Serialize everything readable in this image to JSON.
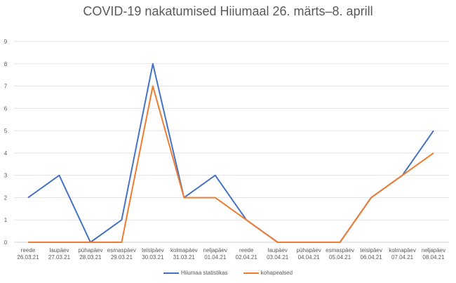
{
  "chart_data": {
    "type": "line",
    "title": "COVID-19 nakatumised Hiiumaal 26. märts–8. aprill",
    "categories": [
      [
        "reede",
        "26.03.21"
      ],
      [
        "laupäev",
        "27.03.21"
      ],
      [
        "pühapäev",
        "28.03.21"
      ],
      [
        "esmaspäev",
        "29.03.21"
      ],
      [
        "teisipäev",
        "30.03.21"
      ],
      [
        "kolmapäev",
        "31.03.21"
      ],
      [
        "neljapäev",
        "01.04.21"
      ],
      [
        "reede",
        "02.04.21"
      ],
      [
        "laupäev",
        "03.04.21"
      ],
      [
        "pühapäev",
        "04.04.21"
      ],
      [
        "esmaspäev",
        "05.04.21"
      ],
      [
        "teisipäev",
        "06.04.21"
      ],
      [
        "kolmapäev",
        "07.04.21"
      ],
      [
        "neljapäev",
        "08.04.21"
      ]
    ],
    "ylim": [
      0,
      9
    ],
    "yticks": [
      0,
      1,
      2,
      3,
      4,
      5,
      6,
      7,
      8,
      9
    ],
    "grid": true,
    "legend_position": "bottom",
    "series": [
      {
        "name": "Hiiumaa statistikas",
        "color": "#4472C4",
        "values": [
          2,
          3,
          0,
          1,
          8,
          2,
          3,
          1,
          0,
          0,
          0,
          2,
          3,
          5
        ]
      },
      {
        "name": "kohapealsed",
        "color": "#ED7D31",
        "values": [
          0,
          0,
          0,
          0,
          7,
          2,
          2,
          1,
          0,
          0,
          0,
          2,
          3,
          4
        ]
      }
    ]
  }
}
